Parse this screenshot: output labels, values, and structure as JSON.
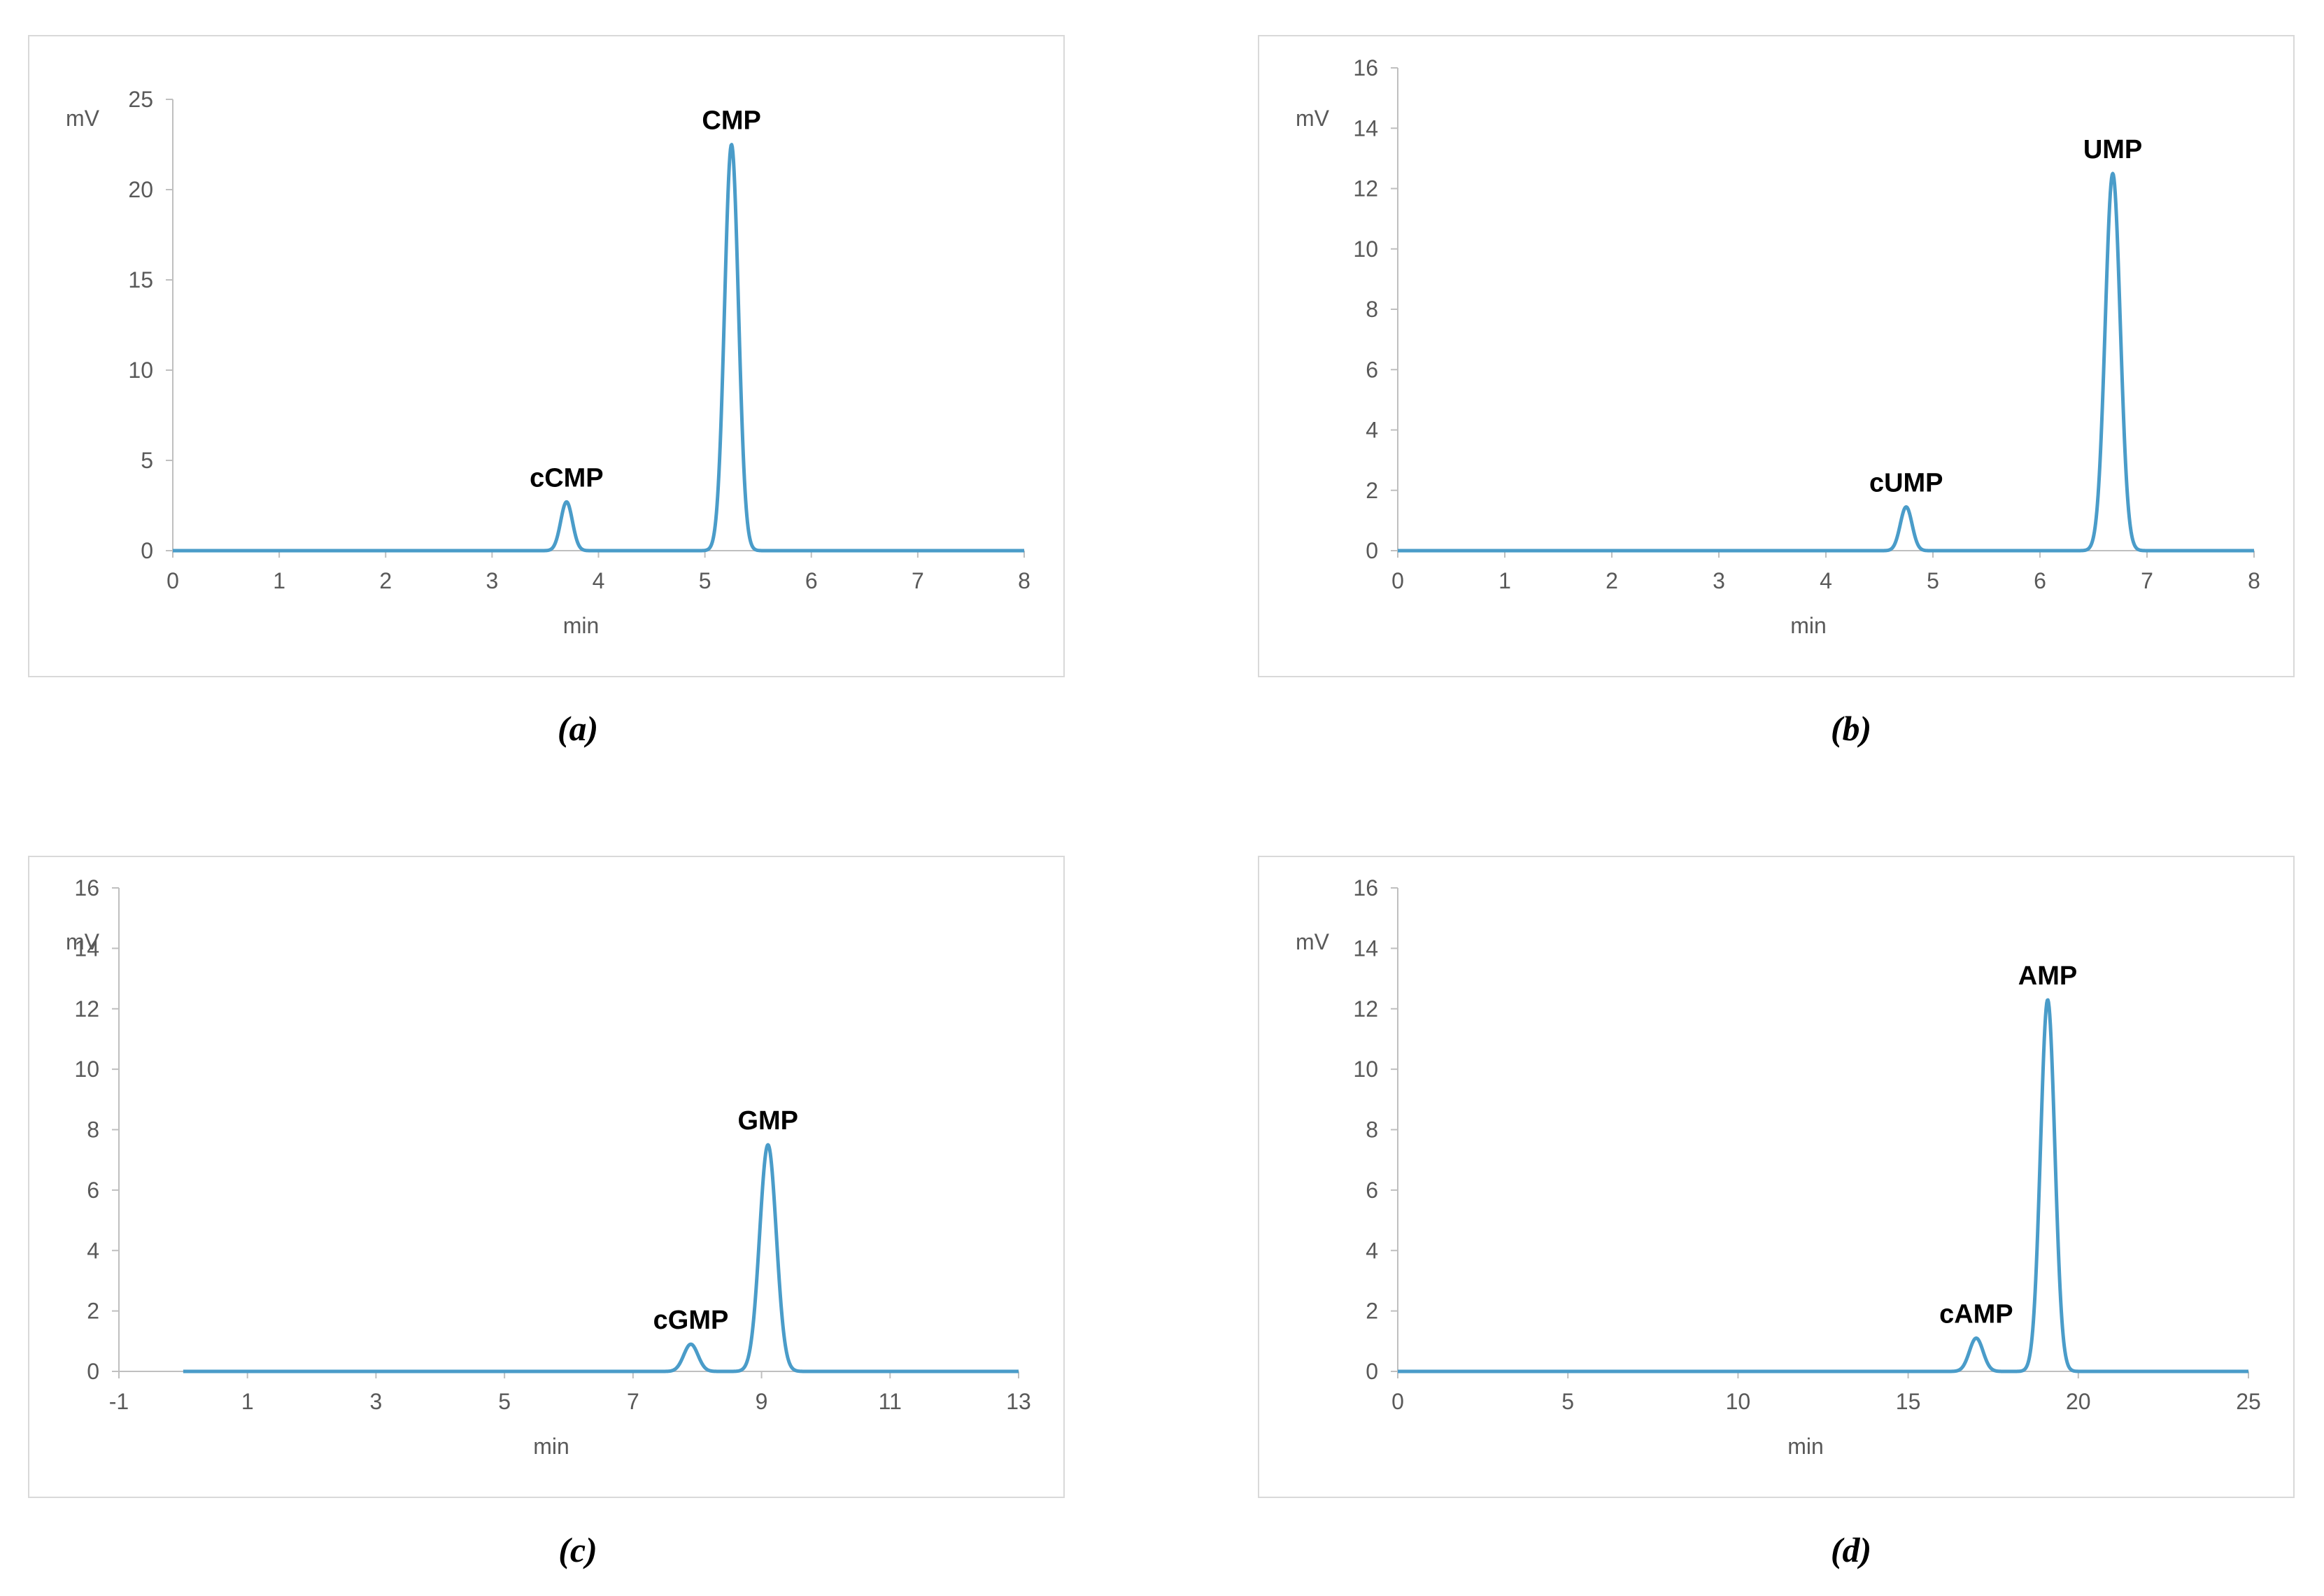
{
  "colors": {
    "trace": "#4a9cc9",
    "axis": "#bfbfbf",
    "border": "#d9d9d9"
  },
  "chart_data": [
    {
      "type": "line",
      "caption": "(a)",
      "xlabel": "min",
      "ylabel": "mV",
      "xlim": [
        0,
        8
      ],
      "ylim": [
        0,
        25
      ],
      "xticks": [
        0,
        1,
        2,
        3,
        4,
        5,
        6,
        7,
        8
      ],
      "yticks": [
        0,
        5,
        10,
        15,
        20,
        25
      ],
      "grid": false,
      "peaks": [
        {
          "name": "cCMP",
          "rt": 3.7,
          "height": 2.7,
          "sigma": 0.055
        },
        {
          "name": "CMP",
          "rt": 5.25,
          "height": 22.5,
          "sigma": 0.065
        }
      ]
    },
    {
      "type": "line",
      "caption": "(b)",
      "xlabel": "min",
      "ylabel": "mV",
      "xlim": [
        0,
        8
      ],
      "ylim": [
        0,
        16
      ],
      "xticks": [
        0,
        1,
        2,
        3,
        4,
        5,
        6,
        7,
        8
      ],
      "yticks": [
        0,
        2,
        4,
        6,
        8,
        10,
        12,
        14,
        16
      ],
      "grid": false,
      "peaks": [
        {
          "name": "cUMP",
          "rt": 4.75,
          "height": 1.45,
          "sigma": 0.055
        },
        {
          "name": "UMP",
          "rt": 6.68,
          "height": 12.5,
          "sigma": 0.07
        }
      ]
    },
    {
      "type": "line",
      "caption": "(c)",
      "xlabel": "min",
      "ylabel": "mV",
      "xlim": [
        -1,
        13
      ],
      "ylim": [
        0,
        16
      ],
      "xticks": [
        -1,
        1,
        3,
        5,
        7,
        9,
        11,
        13
      ],
      "yticks": [
        0,
        2,
        4,
        6,
        8,
        10,
        12,
        14,
        16
      ],
      "grid": false,
      "peaks": [
        {
          "name": "cGMP",
          "rt": 7.9,
          "height": 0.9,
          "sigma": 0.11
        },
        {
          "name": "GMP",
          "rt": 9.1,
          "height": 7.5,
          "sigma": 0.13
        }
      ]
    },
    {
      "type": "line",
      "caption": "(d)",
      "xlabel": "min",
      "ylabel": "mV",
      "xlim": [
        0,
        25
      ],
      "ylim": [
        0,
        16
      ],
      "xticks": [
        0,
        5,
        10,
        15,
        20,
        25
      ],
      "yticks": [
        0,
        2,
        4,
        6,
        8,
        10,
        12,
        14,
        16
      ],
      "grid": false,
      "peaks": [
        {
          "name": "cAMP",
          "rt": 17.0,
          "height": 1.1,
          "sigma": 0.2
        },
        {
          "name": "AMP",
          "rt": 19.1,
          "height": 12.3,
          "sigma": 0.21
        }
      ]
    }
  ]
}
